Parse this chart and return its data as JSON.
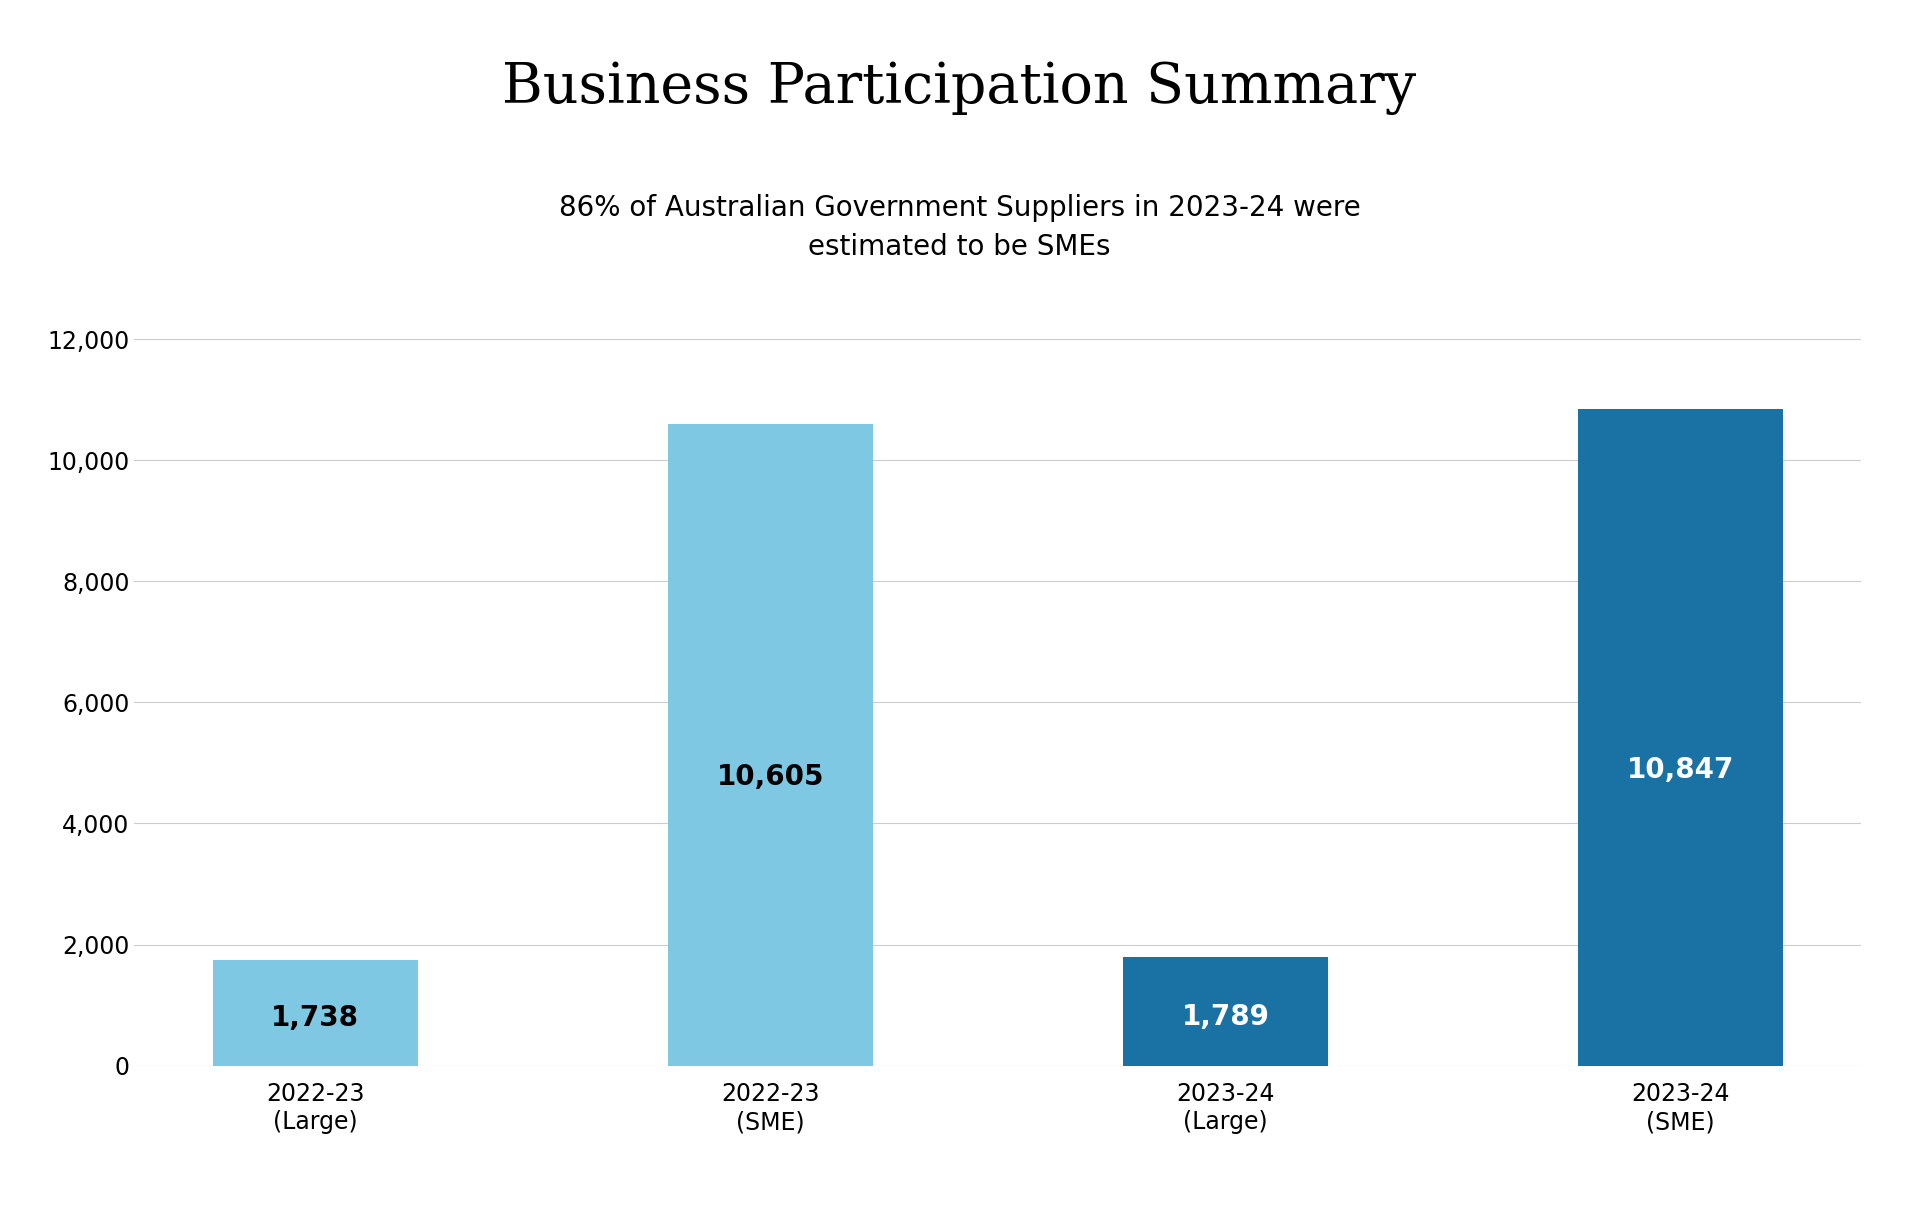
{
  "title": "Business Participation Summary",
  "subtitle": "86% of Australian Government Suppliers in 2023-24 were\nestimated to be SMEs",
  "categories": [
    "2022-23\n(Large)",
    "2022-23\n(SME)",
    "2023-24\n(Large)",
    "2023-24\n(SME)"
  ],
  "values": [
    1738,
    10605,
    1789,
    10847
  ],
  "bar_colors": [
    "#7EC8E3",
    "#7EC8E3",
    "#1A72A4",
    "#1A72A4"
  ],
  "label_colors": [
    "#000000",
    "#000000",
    "#ffffff",
    "#ffffff"
  ],
  "ylim": [
    0,
    12000
  ],
  "yticks": [
    0,
    2000,
    4000,
    6000,
    8000,
    10000,
    12000
  ],
  "background_color": "#ffffff",
  "title_fontsize": 40,
  "subtitle_fontsize": 20,
  "tick_fontsize": 17,
  "bar_label_fontsize": 20
}
